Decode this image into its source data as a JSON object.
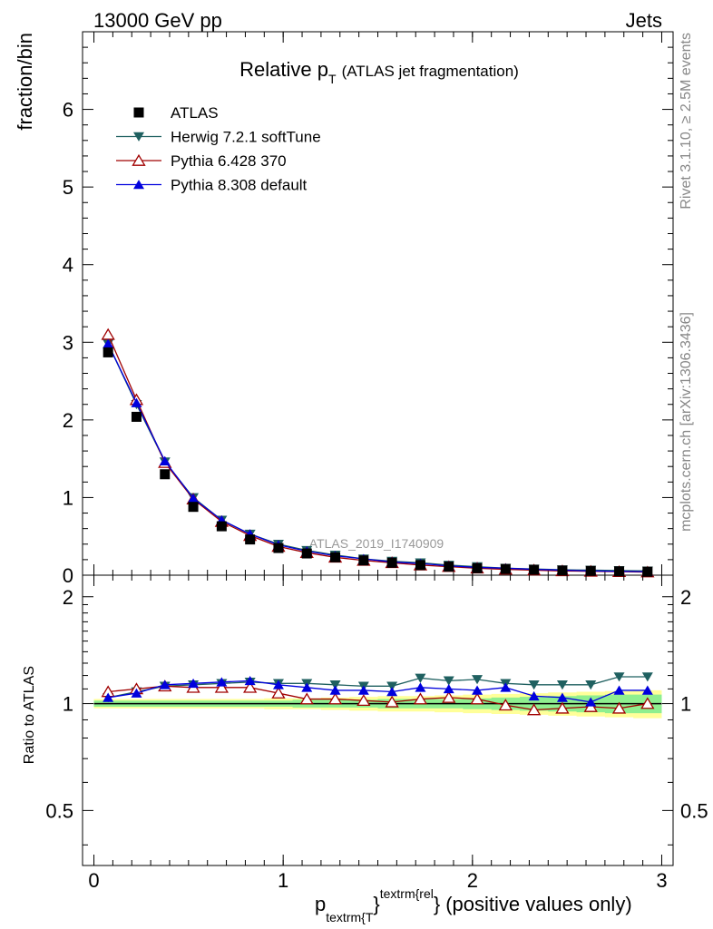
{
  "header": {
    "left": "13000 GeV pp",
    "right": "Jets"
  },
  "title": {
    "main": "Relative p",
    "sub": "T",
    "paren": "(ATLAS jet fragmentation)"
  },
  "watermark": "ATLAS_2019_I1740909",
  "side_text": {
    "rivet": "Rivet 3.1.10, ≥ 2.5M events",
    "mcplots": "mcplots.cern.ch [arXiv:1306.3436]"
  },
  "xlabel": {
    "p": "p",
    "sub": "textrm{T",
    "sup": "textrm{rel",
    "brace1": "}",
    "brace2": "}",
    "rest": "(positive values only)"
  },
  "colors": {
    "atlas": "#000000",
    "herwig": "#1f6060",
    "pythia6": "#a00000",
    "pythia8": "#0000dd",
    "band_inner": "#8fef8f",
    "band_outer": "#ffff99"
  },
  "chart_data": [
    {
      "type": "scatter",
      "ylabel": "fraction/bin",
      "xlim": [
        -0.06,
        3.06
      ],
      "ylim": [
        0,
        7
      ],
      "yticks": [
        0,
        1,
        2,
        3,
        4,
        5,
        6
      ],
      "ytick_labels": [
        "0",
        "1",
        "2",
        "3",
        "4",
        "5",
        "6"
      ],
      "legend_position": "top-left",
      "x": [
        0.075,
        0.225,
        0.375,
        0.525,
        0.675,
        0.825,
        0.975,
        1.125,
        1.275,
        1.425,
        1.575,
        1.725,
        1.875,
        2.025,
        2.175,
        2.325,
        2.475,
        2.625,
        2.775,
        2.925
      ],
      "series": [
        {
          "name": "ATLAS",
          "marker": "square",
          "values": [
            2.87,
            2.04,
            1.3,
            0.88,
            0.63,
            0.46,
            0.35,
            0.28,
            0.23,
            0.19,
            0.16,
            0.13,
            0.11,
            0.09,
            0.08,
            0.07,
            0.06,
            0.055,
            0.05,
            0.045
          ]
        },
        {
          "name": "Herwig 7.2.1 softTune",
          "marker": "triangle-down",
          "values": [
            2.98,
            2.2,
            1.46,
            1.0,
            0.71,
            0.53,
            0.4,
            0.32,
            0.26,
            0.21,
            0.18,
            0.16,
            0.13,
            0.11,
            0.09,
            0.08,
            0.07,
            0.065,
            0.06,
            0.055
          ]
        },
        {
          "name": "Pythia 6.428 370",
          "marker": "triangle-open",
          "values": [
            3.1,
            2.26,
            1.45,
            0.98,
            0.69,
            0.51,
            0.37,
            0.29,
            0.23,
            0.19,
            0.16,
            0.13,
            0.11,
            0.09,
            0.075,
            0.065,
            0.055,
            0.05,
            0.045,
            0.04
          ]
        },
        {
          "name": "Pythia 8.308 default",
          "marker": "triangle-up",
          "values": [
            2.98,
            2.22,
            1.47,
            0.99,
            0.71,
            0.53,
            0.39,
            0.31,
            0.25,
            0.21,
            0.17,
            0.15,
            0.12,
            0.1,
            0.09,
            0.075,
            0.065,
            0.055,
            0.05,
            0.045
          ]
        }
      ]
    },
    {
      "type": "line",
      "ylabel": "Ratio to ATLAS",
      "xlim": [
        -0.06,
        3.06
      ],
      "ylim": [
        0.35,
        2.3
      ],
      "ylog": true,
      "yticks": [
        0.5,
        1,
        2
      ],
      "ytick_labels": [
        "0.5",
        "1",
        "2"
      ],
      "xticks": [
        0,
        1,
        2,
        3
      ],
      "xtick_labels": [
        "0",
        "1",
        "2",
        "3"
      ],
      "reference": 1,
      "x": [
        0.075,
        0.225,
        0.375,
        0.525,
        0.675,
        0.825,
        0.975,
        1.125,
        1.275,
        1.425,
        1.575,
        1.725,
        1.875,
        2.025,
        2.175,
        2.325,
        2.475,
        2.625,
        2.775,
        2.925
      ],
      "band_inner": [
        0.02,
        0.02,
        0.02,
        0.02,
        0.02,
        0.02,
        0.02,
        0.025,
        0.025,
        0.025,
        0.03,
        0.03,
        0.03,
        0.035,
        0.04,
        0.045,
        0.05,
        0.055,
        0.06,
        0.06
      ],
      "band_outer": [
        0.03,
        0.03,
        0.03,
        0.03,
        0.03,
        0.03,
        0.035,
        0.035,
        0.04,
        0.045,
        0.05,
        0.05,
        0.055,
        0.06,
        0.065,
        0.07,
        0.075,
        0.08,
        0.085,
        0.09
      ],
      "series": [
        {
          "name": "Herwig 7.2.1 softTune",
          "values": [
            1.04,
            1.08,
            1.12,
            1.13,
            1.14,
            1.15,
            1.14,
            1.14,
            1.13,
            1.12,
            1.12,
            1.18,
            1.16,
            1.17,
            1.14,
            1.13,
            1.13,
            1.13,
            1.19,
            1.19
          ]
        },
        {
          "name": "Pythia 6.428 370",
          "values": [
            1.08,
            1.1,
            1.12,
            1.11,
            1.11,
            1.11,
            1.07,
            1.03,
            1.03,
            1.02,
            1.01,
            1.03,
            1.04,
            1.03,
            0.99,
            0.96,
            0.97,
            0.98,
            0.97,
            1.0
          ]
        },
        {
          "name": "Pythia 8.308 default",
          "values": [
            1.04,
            1.07,
            1.13,
            1.14,
            1.15,
            1.16,
            1.13,
            1.11,
            1.09,
            1.09,
            1.08,
            1.11,
            1.1,
            1.09,
            1.11,
            1.05,
            1.04,
            1.01,
            1.09,
            1.09
          ]
        }
      ]
    }
  ]
}
